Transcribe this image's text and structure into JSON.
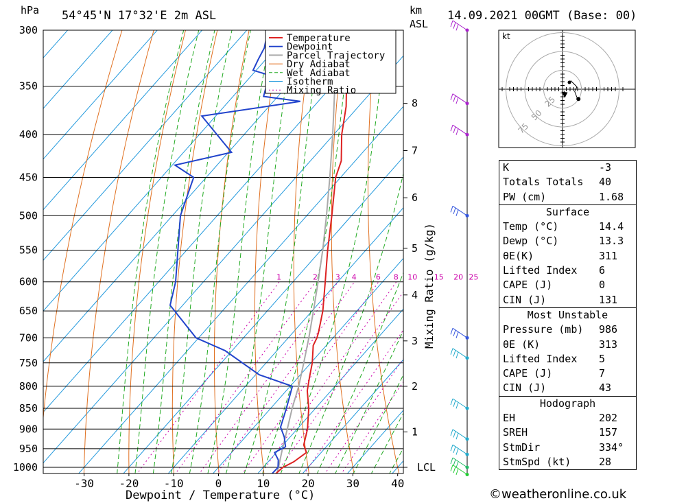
{
  "header": {
    "pressure_unit": "hPa",
    "location": "54°45'N 17°32'E 2m ASL",
    "height_unit_line1": "km",
    "height_unit_line2": "ASL",
    "datetime": "14.09.2021 00GMT (Base: 00)"
  },
  "chart_data": {
    "type": "skew-t log-p sounding",
    "xlabel": "Dewpoint / Temperature (°C)",
    "ylabel": "hPa",
    "y2label": "Mixing Ratio (g/kg)",
    "pressure_ticks": [
      300,
      350,
      400,
      450,
      500,
      550,
      600,
      650,
      700,
      750,
      800,
      850,
      900,
      950,
      1000
    ],
    "temperature_ticks": [
      -30,
      -20,
      -10,
      0,
      10,
      20,
      30,
      40
    ],
    "xlim": [
      -40,
      40
    ],
    "ylim": [
      1030,
      300
    ],
    "height_ticks_km": [
      {
        "label": "8",
        "p": 367
      },
      {
        "label": "7",
        "p": 418
      },
      {
        "label": "6",
        "p": 476
      },
      {
        "label": "5",
        "p": 547
      },
      {
        "label": "4",
        "p": 622
      },
      {
        "label": "3",
        "p": 706
      },
      {
        "label": "2",
        "p": 800
      },
      {
        "label": "1",
        "p": 907
      },
      {
        "label": "LCL",
        "p": 1000
      }
    ],
    "mixing_ratio_labels": [
      "1",
      "2",
      "3",
      "4",
      "6",
      "8",
      "10",
      "15",
      "20",
      "25"
    ],
    "mixing_ratio_values": [
      1,
      2,
      3,
      4,
      6,
      8,
      10,
      15,
      20,
      25
    ],
    "legend": [
      "Temperature",
      "Dewpoint",
      "Parcel Trajectory",
      "Dry Adiabat",
      "Wet Adiabat",
      "Isotherm",
      "Mixing Ratio"
    ],
    "colors": {
      "temperature": "#dd2222",
      "dewpoint": "#2244cc",
      "parcel": "#aaaaaa",
      "dry_adiabat": "#e07020",
      "wet_adiabat": "#22aa22",
      "isotherm": "#2299dd",
      "mixing_ratio": "#cc00aa"
    },
    "series": [
      {
        "name": "Temperature",
        "points": [
          {
            "p": 1020,
            "t": 14.0
          },
          {
            "p": 1000,
            "t": 14.4
          },
          {
            "p": 985,
            "t": 15.7
          },
          {
            "p": 960,
            "t": 16.7
          },
          {
            "p": 940,
            "t": 14.6
          },
          {
            "p": 900,
            "t": 12.3
          },
          {
            "p": 850,
            "t": 8.5
          },
          {
            "p": 810,
            "t": 4.7
          },
          {
            "p": 780,
            "t": 2.5
          },
          {
            "p": 750,
            "t": 0.3
          },
          {
            "p": 715,
            "t": -2.9
          },
          {
            "p": 700,
            "t": -3.6
          },
          {
            "p": 690,
            "t": -4.3
          },
          {
            "p": 650,
            "t": -7.6
          },
          {
            "p": 600,
            "t": -12.8
          },
          {
            "p": 550,
            "t": -18.5
          },
          {
            "p": 500,
            "t": -24.4
          },
          {
            "p": 450,
            "t": -31.1
          },
          {
            "p": 430,
            "t": -33.1
          },
          {
            "p": 400,
            "t": -38.2
          },
          {
            "p": 370,
            "t": -42.8
          },
          {
            "p": 350,
            "t": -46.7
          },
          {
            "p": 330,
            "t": -50.9
          },
          {
            "p": 300,
            "t": -57.1
          }
        ]
      },
      {
        "name": "Dewpoint",
        "points": [
          {
            "p": 1020,
            "t": 13.2
          },
          {
            "p": 1000,
            "t": 13.3
          },
          {
            "p": 980,
            "t": 11.9
          },
          {
            "p": 960,
            "t": 9.6
          },
          {
            "p": 945,
            "t": 10.9
          },
          {
            "p": 920,
            "t": 8.7
          },
          {
            "p": 895,
            "t": 5.9
          },
          {
            "p": 850,
            "t": 3.5
          },
          {
            "p": 800,
            "t": 0.5
          },
          {
            "p": 775,
            "t": -9.2
          },
          {
            "p": 725,
            "t": -21.6
          },
          {
            "p": 700,
            "t": -30.6
          },
          {
            "p": 640,
            "t": -42.8
          },
          {
            "p": 600,
            "t": -46.2
          },
          {
            "p": 500,
            "t": -58.2
          },
          {
            "p": 450,
            "t": -62.8
          },
          {
            "p": 435,
            "t": -69.4
          },
          {
            "p": 420,
            "t": -59.3
          },
          {
            "p": 380,
            "t": -73.1
          },
          {
            "p": 365,
            "t": -54.0
          },
          {
            "p": 360,
            "t": -63.2
          },
          {
            "p": 350,
            "t": -64.6
          },
          {
            "p": 345,
            "t": -60.8
          },
          {
            "p": 335,
            "t": -70.7
          },
          {
            "p": 325,
            "t": -71.7
          },
          {
            "p": 315,
            "t": -72.6
          },
          {
            "p": 300,
            "t": -75.3
          }
        ]
      },
      {
        "name": "Parcel Trajectory",
        "points": [
          {
            "p": 1020,
            "t": 14.4
          },
          {
            "p": 1000,
            "t": 13.4
          },
          {
            "p": 950,
            "t": 10.6
          },
          {
            "p": 900,
            "t": 7.8
          },
          {
            "p": 850,
            "t": 4.8
          },
          {
            "p": 800,
            "t": 1.9
          },
          {
            "p": 750,
            "t": -1.6
          },
          {
            "p": 700,
            "t": -5.4
          },
          {
            "p": 650,
            "t": -9.7
          },
          {
            "p": 600,
            "t": -14.4
          },
          {
            "p": 550,
            "t": -19.6
          },
          {
            "p": 500,
            "t": -25.6
          },
          {
            "p": 450,
            "t": -32.4
          },
          {
            "p": 400,
            "t": -40.2
          },
          {
            "p": 350,
            "t": -49.3
          },
          {
            "p": 300,
            "t": -59.3
          }
        ]
      }
    ]
  },
  "hodograph": {
    "unit_label": "kt",
    "ring_labels": [
      "25",
      "50",
      "75"
    ],
    "ring_values": [
      25,
      50,
      75
    ],
    "trace": [
      {
        "u": 0,
        "v": 0
      },
      {
        "u": 2,
        "v": 2
      },
      {
        "u": 5,
        "v": -1
      },
      {
        "u": 10,
        "v": -6
      },
      {
        "u": 7,
        "v": -12
      },
      {
        "u": 10,
        "v": -20
      },
      {
        "u": 12,
        "v": -22
      }
    ],
    "storm_motion": {
      "u": -6,
      "v": -16
    },
    "max_kt": 80
  },
  "indices": {
    "general": [
      {
        "key": "K",
        "value": "-3"
      },
      {
        "key": "Totals Totals",
        "value": "40"
      },
      {
        "key": "PW (cm)",
        "value": "1.68"
      }
    ],
    "surface": {
      "title": "Surface",
      "rows": [
        {
          "key": "Temp (°C)",
          "value": "14.4"
        },
        {
          "key": "Dewp (°C)",
          "value": "13.3"
        },
        {
          "key": "θE(K)",
          "value": "311"
        },
        {
          "key": "Lifted Index",
          "value": "6"
        },
        {
          "key": "CAPE (J)",
          "value": "0"
        },
        {
          "key": "CIN (J)",
          "value": "131"
        }
      ]
    },
    "most_unstable": {
      "title": "Most Unstable",
      "rows": [
        {
          "key": "Pressure (mb)",
          "value": "986"
        },
        {
          "key": "θE (K)",
          "value": "313"
        },
        {
          "key": "Lifted Index",
          "value": "5"
        },
        {
          "key": "CAPE (J)",
          "value": "7"
        },
        {
          "key": "CIN (J)",
          "value": "43"
        }
      ]
    },
    "hodograph": {
      "title": "Hodograph",
      "rows": [
        {
          "key": "EH",
          "value": "202"
        },
        {
          "key": "SREH",
          "value": "157"
        },
        {
          "key": "StmDir",
          "value": "334°"
        },
        {
          "key": "StmSpd (kt)",
          "value": "28"
        }
      ]
    }
  },
  "credit": "©weatheronline.co.uk"
}
